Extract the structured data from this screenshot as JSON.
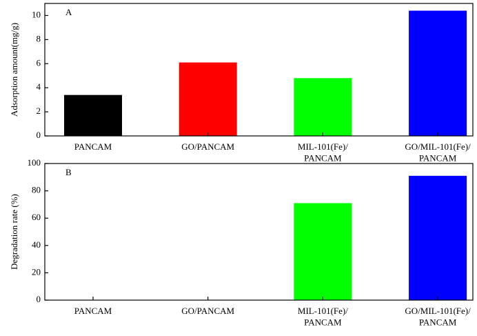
{
  "chart_data": [
    {
      "type": "bar",
      "annotation": "A",
      "ylabel": "Adsorption  amount(mg/g)",
      "categories": [
        "PANCAM",
        "GO/PANCAM",
        "MIL-101(Fe)/\nPANCAM",
        "GO/MIL-101(Fe)/\nPANCAM"
      ],
      "values": [
        3.4,
        6.1,
        4.8,
        10.4
      ],
      "colors": [
        "#000000",
        "#ff0000",
        "#00ff00",
        "#0000ff"
      ],
      "ylim": [
        0,
        11
      ],
      "yticks": [
        0,
        2,
        4,
        6,
        8,
        10
      ]
    },
    {
      "type": "bar",
      "annotation": "B",
      "ylabel": "Degradation rate (%)",
      "categories": [
        "PANCAM",
        "GO/PANCAM",
        "MIL-101(Fe)/\nPANCAM",
        "GO/MIL-101(Fe)/\nPANCAM"
      ],
      "values": [
        0,
        0,
        71,
        91
      ],
      "colors": [
        "#000000",
        "#ff0000",
        "#00ff00",
        "#0000ff"
      ],
      "ylim": [
        0,
        100
      ],
      "yticks": [
        0,
        20,
        40,
        60,
        80,
        100
      ]
    }
  ]
}
